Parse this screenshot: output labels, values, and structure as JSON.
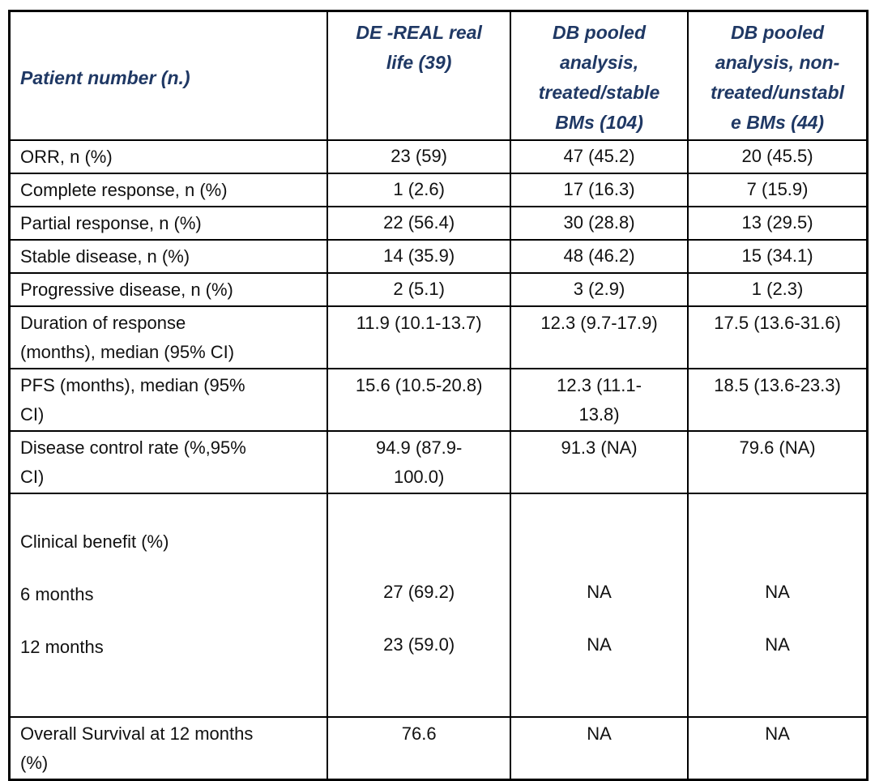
{
  "table": {
    "header": {
      "col1": "Patient number (n.)",
      "col2": [
        "DE -REAL real",
        "life (39)"
      ],
      "col3": [
        "DB pooled",
        "analysis,",
        "treated/stable",
        "BMs (104)"
      ],
      "col4": [
        "DB pooled",
        "analysis, non-",
        "treated/unstabl",
        "e BMs (44)"
      ]
    },
    "rows": [
      {
        "label": "ORR, n (%)",
        "c2": "23 (59)",
        "c3": "47 (45.2)",
        "c4": "20 (45.5)"
      },
      {
        "label": "Complete response, n (%)",
        "c2": "1 (2.6)",
        "c3": "17 (16.3)",
        "c4": "7 (15.9)"
      },
      {
        "label": "Partial response, n (%)",
        "c2": "22 (56.4)",
        "c3": "30 (28.8)",
        "c4": "13 (29.5)"
      },
      {
        "label": "Stable disease, n (%)",
        "c2": "14 (35.9)",
        "c3": "48 (46.2)",
        "c4": "15 (34.1)"
      },
      {
        "label": "Progressive disease, n (%)",
        "c2": "2 (5.1)",
        "c3": "3 (2.9)",
        "c4": "1 (2.3)"
      },
      {
        "label": [
          "Duration of response",
          "(months), median (95% CI)"
        ],
        "c2": "11.9 (10.1-13.7)",
        "c3": "12.3 (9.7-17.9)",
        "c4": "17.5 (13.6-31.6)"
      },
      {
        "label": [
          "PFS (months), median (95%",
          "CI)"
        ],
        "c2": "15.6 (10.5-20.8)",
        "c3": [
          "12.3 (11.1-",
          "13.8)"
        ],
        "c4": "18.5 (13.6-23.3)"
      },
      {
        "label": [
          "Disease control rate (%,95%",
          "CI)"
        ],
        "c2": [
          "94.9 (87.9-",
          "100.0)"
        ],
        "c3": "91.3 (NA)",
        "c4": "79.6 (NA)"
      },
      {
        "label": [
          "Overall Survival at 12 months",
          "(%)"
        ],
        "c2": "76.6",
        "c3": "NA",
        "c4": "NA"
      }
    ],
    "clinical_benefit": {
      "title": "Clinical benefit (%)",
      "rows": [
        {
          "label": "6 months",
          "c2": "27 (69.2)",
          "c3": "NA",
          "c4": "NA"
        },
        {
          "label": "12 months",
          "c2": "23 (59.0)",
          "c3": "NA",
          "c4": "NA"
        }
      ]
    }
  },
  "colors": {
    "header_text": "#1f3864",
    "body_text": "#111111",
    "border": "#000000",
    "background": "#ffffff"
  }
}
